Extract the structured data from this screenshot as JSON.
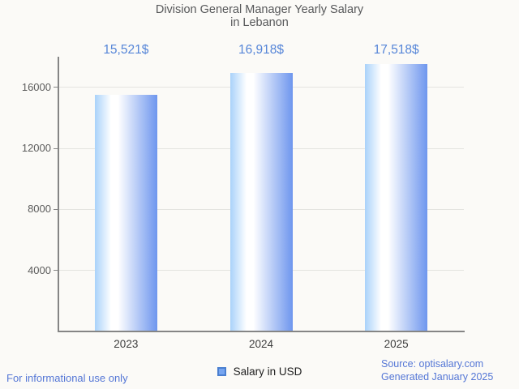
{
  "chart_data": {
    "type": "bar",
    "title": "Division General Manager Yearly Salary in Lebanon",
    "title_lines": [
      "Division General Manager Yearly Salary",
      "in Lebanon"
    ],
    "categories": [
      "2023",
      "2024",
      "2025"
    ],
    "values": [
      15521,
      16918,
      17518
    ],
    "value_labels": [
      "15,521$",
      "16,918$",
      "17,518$"
    ],
    "series_name": "Salary in USD",
    "xlabel": "",
    "ylabel": "",
    "ylim": [
      0,
      18000
    ],
    "yticks": [
      4000,
      8000,
      12000,
      16000
    ],
    "ytick_labels": [
      "4000",
      "8000",
      "12000",
      "16000"
    ],
    "grid": true,
    "legend_position": "bottom",
    "colors": {
      "bar_gradient_left": "#a9d2fa",
      "bar_gradient_middle": "#ffffff",
      "bar_gradient_right": "#6e96ee",
      "value_label": "#5585d8",
      "legend_swatch_fill": "#76a5f0",
      "legend_swatch_border": "#4a7fd0",
      "axis_line": "#858585",
      "gridline": "#e4e4e0",
      "title": "#57585a",
      "tick_labels": "#5c5c5c",
      "background": "#fbfaf7",
      "footer_text": "#5577d6"
    }
  },
  "footer": {
    "note": "For informational use only",
    "source_line1": "Source: optisalary.com",
    "source_line2": "Generated January 2025"
  }
}
